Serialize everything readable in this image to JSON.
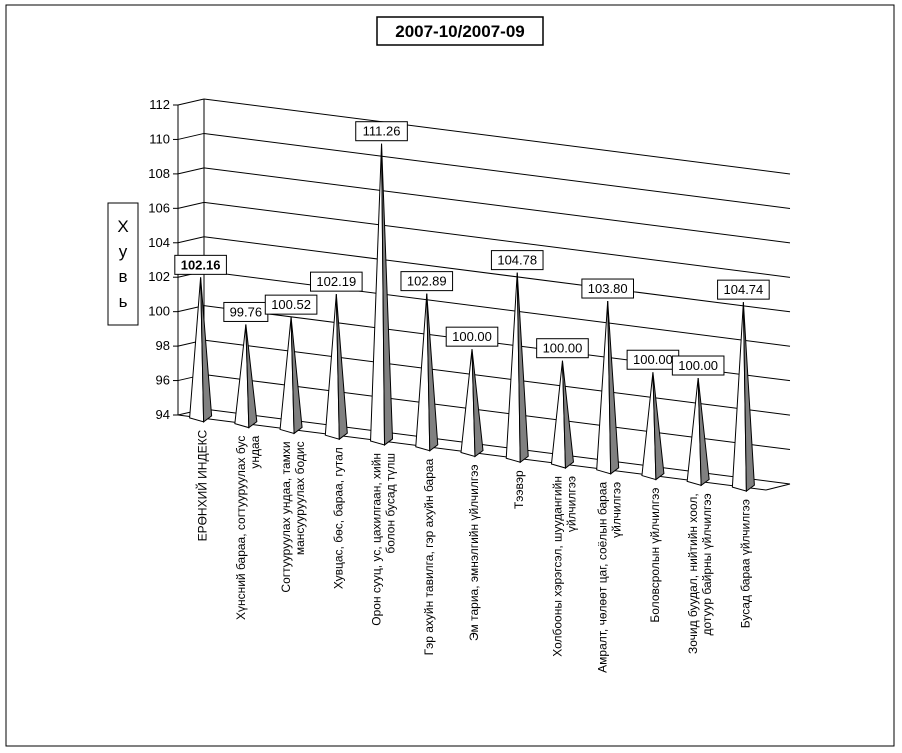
{
  "chart_data": {
    "type": "bar",
    "title": "2007-10/2007-09",
    "ylabel": "Хувь",
    "ylim": [
      94,
      112
    ],
    "yticks": [
      "94",
      "96",
      "98",
      "100",
      "102",
      "104",
      "106",
      "108",
      "110",
      "112"
    ],
    "grid": true,
    "categories": [
      [
        "ЕРӨНХИЙ ИНДЕКС"
      ],
      [
        "Хүнсний бараа, согтууруулах бус",
        "ундаа"
      ],
      [
        "Согтууруулах ундаа, тамхи",
        "мансууруулах бодис"
      ],
      [
        "Хувцас, бөс, бараа, гутал"
      ],
      [
        "Орон сууц, ус, цахилгаан, хийн",
        "болон бусад түлш"
      ],
      [
        "Гэр ахуйн тавилга, гэр ахуйн бараа"
      ],
      [
        "Эм тариа, эмнэлгийн үйлчилгээ"
      ],
      [
        "Тээвэр"
      ],
      [
        "Холбооны хэрэгсэл, шуудангийн",
        "үйлчилгээ"
      ],
      [
        "Амралт, чөлөөт  цаг, соёлын бараа",
        "үйлчилгээ"
      ],
      [
        "Боловсролын үйлчилгээ"
      ],
      [
        "Зочид буудал, нийтийн хоол,",
        "дотуур байрны үйлчилгээ"
      ],
      [
        "Бусад бараа үйлчилгээ"
      ]
    ],
    "values": [
      102.16,
      99.76,
      100.52,
      102.19,
      111.26,
      102.89,
      100.0,
      104.78,
      100.0,
      103.8,
      100.0,
      100.0,
      104.74
    ],
    "labels": [
      "102.16",
      "99.76",
      "100.52",
      "102.19",
      "111.26",
      "102.89",
      "100.00",
      "104.78",
      "100.00",
      "103.80",
      "100.00",
      "100.00",
      "104.74"
    ]
  },
  "colors": {
    "cone_face": "#ffffff",
    "cone_shadow": "#808080",
    "grid": "#000000"
  }
}
